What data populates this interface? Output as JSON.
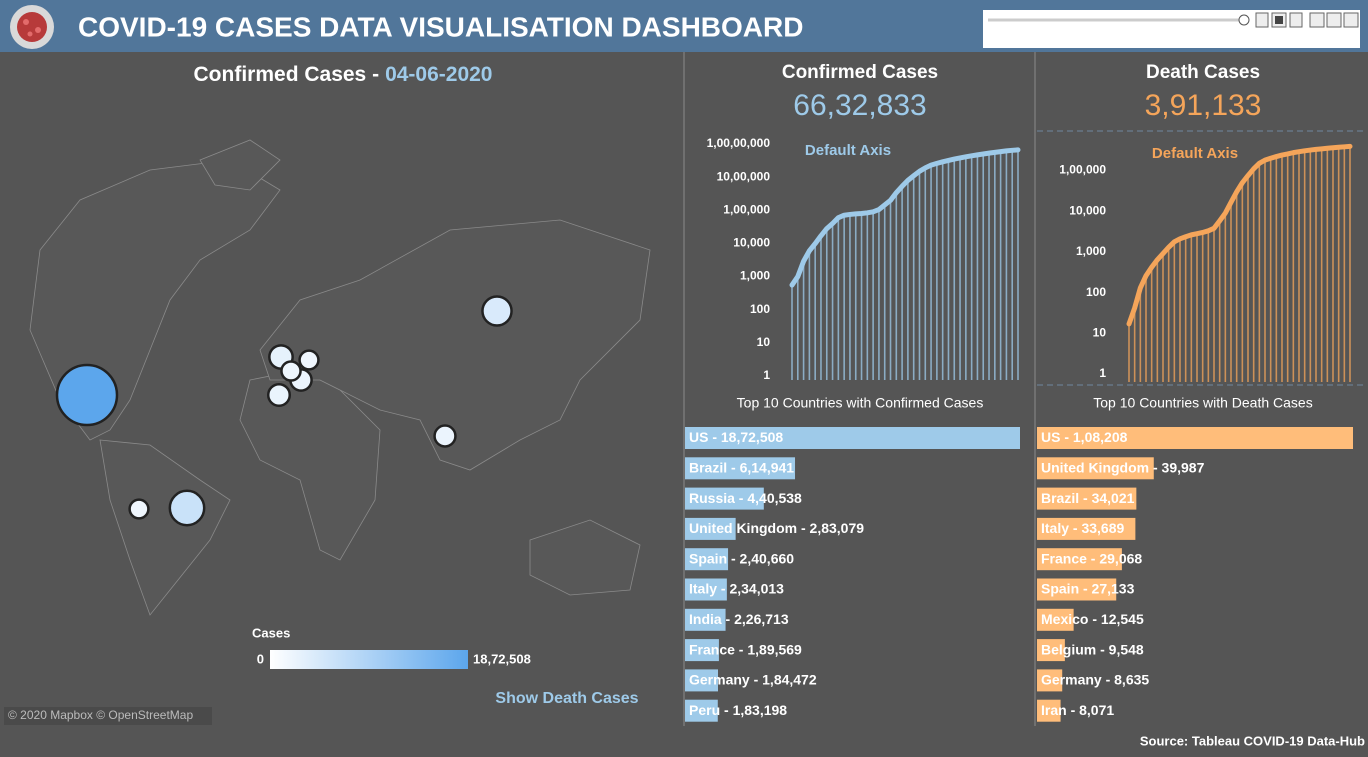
{
  "header": {
    "title": "COVID-19 CASES DATA VISUALISATION DASHBOARD"
  },
  "map": {
    "title": "Confirmed Cases -",
    "date": "04-06-2020",
    "legend_title": "Cases",
    "legend_min": 0,
    "legend_max": {
      "value": 1872508,
      "label": "18,72,508"
    },
    "toggle": "Show Death Cases",
    "attribution": "© 2020 Mapbox © OpenStreetMap"
  },
  "chart_data": [
    {
      "type": "line",
      "title": "Confirmed Cases",
      "total": {
        "value": 6632833,
        "label": "66,32,833"
      },
      "annotation": "Default Axis",
      "log_scale": true,
      "color": "#9ecae9",
      "values": [
        555,
        1000,
        2900,
        6000,
        9900,
        17000,
        28000,
        40000,
        60000,
        71000,
        75000,
        78000,
        80000,
        84000,
        90000,
        105000,
        145000,
        200000,
        340000,
        530000,
        800000,
        1100000,
        1500000,
        1900000,
        2300000,
        2600000,
        2900000,
        3200000,
        3500000,
        3800000,
        4100000,
        4400000,
        4700000,
        5000000,
        5300000,
        5600000,
        5900000,
        6200000,
        6450000,
        6632833
      ],
      "ylim": [
        1,
        10000000
      ],
      "yticks": [
        1,
        10,
        100,
        {
          "value": 1000,
          "label": "1,000"
        },
        {
          "value": 10000,
          "label": "10,000"
        },
        {
          "value": 100000,
          "label": "1,00,000"
        },
        {
          "value": 1000000,
          "label": "10,00,000"
        },
        {
          "value": 10000000,
          "label": "1,00,00,000"
        }
      ]
    },
    {
      "type": "line",
      "title": "Death Cases",
      "total": {
        "value": 391133,
        "label": "3,91,133"
      },
      "annotation": "Default Axis",
      "log_scale": true,
      "color": "#f5a55a",
      "values": [
        17,
        42,
        130,
        260,
        420,
        640,
        910,
        1300,
        1770,
        2100,
        2360,
        2620,
        2800,
        3000,
        3300,
        3800,
        5800,
        9000,
        16500,
        30000,
        50000,
        75000,
        110000,
        150000,
        180000,
        200000,
        220000,
        240000,
        255000,
        275000,
        290000,
        305000,
        318000,
        330000,
        340000,
        352000,
        362000,
        372000,
        382000,
        391133
      ],
      "ylim": [
        1,
        400000
      ],
      "yticks": [
        1,
        10,
        100,
        {
          "value": 1000,
          "label": "1,000"
        },
        {
          "value": 10000,
          "label": "10,000"
        },
        {
          "value": 100000,
          "label": "1,00,000"
        }
      ]
    },
    {
      "type": "bar",
      "orientation": "horizontal",
      "title": "Top 10 Countries with Confirmed Cases",
      "color": "#9ecae9",
      "values": [
        1872508,
        614941,
        440538,
        283079,
        240660,
        234013,
        226713,
        189569,
        184472,
        183198
      ],
      "value_labels": [
        "US - 18,72,508",
        "Brazil - 6,14,941",
        "Russia - 4,40,538",
        "United Kingdom - 2,83,079",
        "Spain - 2,40,660",
        "Italy - 2,34,013",
        "India - 2,26,713",
        "France - 1,89,569",
        "Germany - 1,84,472",
        "Peru - 1,83,198"
      ],
      "xlim": [
        0,
        1872508
      ]
    },
    {
      "type": "bar",
      "orientation": "horizontal",
      "title": "Top 10 Countries with Death Cases",
      "color": "#ffbd7a",
      "values": [
        108208,
        39987,
        34021,
        33689,
        29068,
        27133,
        12545,
        9548,
        8635,
        8071
      ],
      "value_labels": [
        "US - 1,08,208",
        "United Kingdom - 39,987",
        "Brazil - 34,021",
        "Italy - 33,689",
        "France - 29,068",
        "Spain - 27,133",
        "Mexico - 12,545",
        "Belgium - 9,548",
        "Germany - 8,635",
        "Iran - 8,071"
      ],
      "xlim": [
        0,
        108208
      ]
    }
  ],
  "source": "Source: Tableau COVID-19 Data-Hub"
}
